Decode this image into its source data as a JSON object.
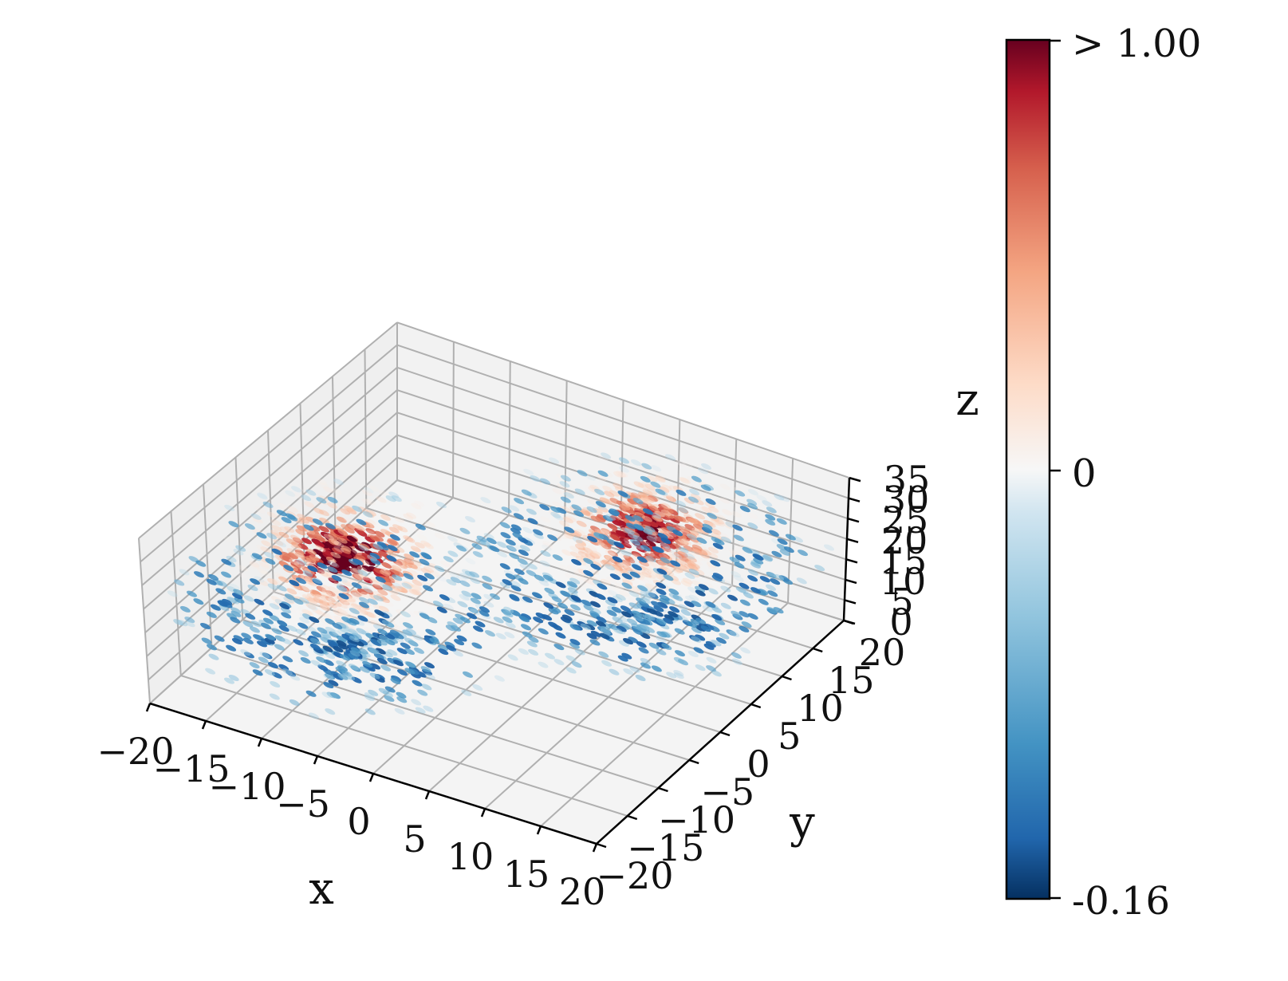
{
  "chart_data": {
    "type": "scatter",
    "projection": "3d",
    "description_units": "x, y, z in data units; value is the colored quantity",
    "xlabel": "x",
    "ylabel": "y",
    "zlabel": "z",
    "xlim": [
      -20,
      20
    ],
    "ylim": [
      -20,
      20
    ],
    "zlim": [
      0,
      35
    ],
    "xticks": [
      "−20",
      "−15",
      "−10",
      "−5",
      "0",
      "5",
      "10",
      "15",
      "20"
    ],
    "yticks": [
      "−20",
      "−15",
      "−10",
      "−5",
      "0",
      "5",
      "10",
      "15",
      "20"
    ],
    "zticks": [
      "0",
      "5",
      "10",
      "15",
      "20",
      "25",
      "30",
      "35"
    ],
    "grid": true,
    "colormap": "RdBu_r",
    "colorbar": {
      "orientation": "vertical",
      "placement": "right",
      "min": -0.16,
      "max": 1.0,
      "tick_labels": [
        "> 1.00",
        "0",
        "-0.16"
      ]
    },
    "clusters": [
      {
        "center": [
          -8.5,
          -8.5,
          27
        ],
        "spread": [
          4,
          4,
          4.5
        ],
        "peak_value": 1.0
      },
      {
        "center": [
          8.5,
          8.5,
          27
        ],
        "spread": [
          4,
          4,
          4.5
        ],
        "peak_value": 0.85
      }
    ],
    "shell": {
      "shape": "butterfly",
      "peak_value": -0.16,
      "z_range": [
        5,
        33
      ]
    },
    "colors": {
      "pane": "#f2f2f2",
      "grid": "#b0b0b0",
      "positive_max": "#67001f",
      "zero": "#f7f7f7",
      "negative_min": "#053061"
    }
  }
}
